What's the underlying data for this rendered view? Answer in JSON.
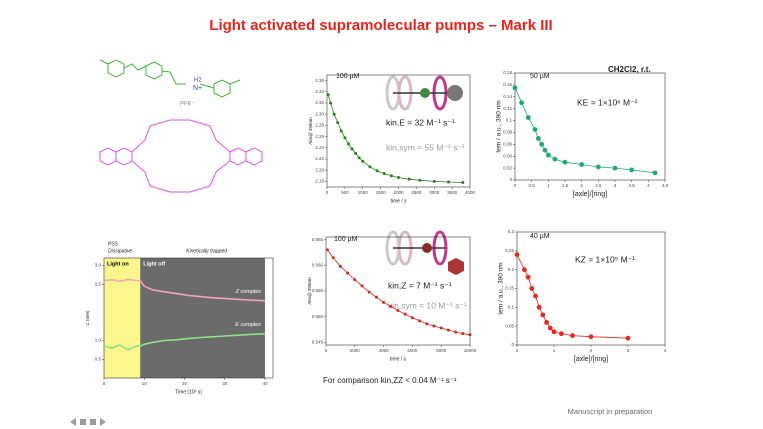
{
  "title": "Light activated supramolecular pumps – Mark III",
  "footer": "Manuscript in preparation",
  "solvent": "CH2Cl2, r.t.",
  "comparison": "For comparison   kin,ZZ < 0.04 M⁻¹ s⁻¹",
  "structure_labels": [
    "H2",
    "N+",
    "PF6⁻"
  ],
  "chart_data": [
    {
      "type": "scatter",
      "x_label": "time / s",
      "y_label": "Abs@ 390nm",
      "annotations": [
        "100 µM",
        "kin,E = 32 M⁻¹ s⁻¹",
        "kin,sym = 55 M⁻¹ s⁻¹"
      ],
      "xlim": [
        0,
        4000
      ],
      "xticks": [
        0,
        500,
        1000,
        1500,
        2000,
        2500,
        3000,
        3500,
        4000
      ],
      "ylim": [
        2.17,
        2.37
      ],
      "yticks": [
        2.18,
        {
          "value": 2.2,
          "label": "2.20"
        },
        2.22,
        2.24,
        2.26,
        2.28,
        {
          "value": 2.3,
          "label": "2.30"
        },
        2.32,
        2.34,
        2.36
      ],
      "series": [
        {
          "color": "#2e7d1e",
          "x": [
            30,
            100,
            200,
            300,
            400,
            500,
            600,
            700,
            800,
            900,
            1000,
            1200,
            1400,
            1600,
            1800,
            2000,
            2300,
            2600,
            3000,
            3400,
            3800
          ],
          "values": [
            2.335,
            2.32,
            2.3,
            2.285,
            2.27,
            2.258,
            2.247,
            2.238,
            2.23,
            2.222,
            2.216,
            2.206,
            2.199,
            2.194,
            2.19,
            2.187,
            2.184,
            2.182,
            2.18,
            2.179,
            2.178
          ]
        }
      ]
    },
    {
      "type": "scatter",
      "x_label": "[axle]/[ring]",
      "y_label": "Iem / a.u., 390 nm",
      "annotations": [
        "50 µM",
        "KE = 1×10⁶ M⁻¹"
      ],
      "xlim": [
        0,
        4.5
      ],
      "xticks": [
        0,
        0.5,
        1,
        1.5,
        2,
        2.5,
        3,
        3.5,
        4,
        4.5
      ],
      "ylim": [
        0,
        0.18
      ],
      "yticks": [
        0,
        0.02,
        0.04,
        0.06,
        0.08,
        0.1,
        0.12,
        0.14,
        0.16,
        0.18
      ],
      "series": [
        {
          "color": "#1faa6e",
          "x": [
            0,
            0.2,
            0.4,
            0.6,
            0.7,
            0.8,
            0.9,
            1,
            1.2,
            1.5,
            2,
            2.5,
            3,
            3.5,
            4.2
          ],
          "values": [
            0.155,
            0.13,
            0.105,
            0.085,
            0.07,
            0.06,
            0.05,
            0.042,
            0.035,
            0.03,
            0.026,
            0.022,
            0.02,
            0.017,
            0.012
          ]
        }
      ]
    },
    {
      "type": "scatter",
      "x_label": "time / s",
      "y_label": "Abs@ 390nm",
      "annotations": [
        "100 µM",
        "kin,Z = 7 M⁻¹ s⁻¹",
        "kin,sym = 10 M⁻¹ s⁻¹"
      ],
      "xlim": [
        0,
        10000
      ],
      "xticks": [
        0,
        2000,
        4000,
        6000,
        8000,
        10000
      ],
      "ylim": [
        0.5445,
        0.5655
      ],
      "yticks": [
        0.545,
        {
          "value": 0.55,
          "label": "0.550"
        },
        0.555,
        {
          "value": 0.56,
          "label": "0.560"
        },
        0.565
      ],
      "series": [
        {
          "color": "#d42a1e",
          "x": [
            100,
            500,
            1000,
            1500,
            2000,
            2500,
            3000,
            3500,
            4000,
            4500,
            5000,
            5500,
            6000,
            6500,
            7000,
            7500,
            8000,
            8500,
            9000,
            9500,
            10000
          ],
          "values": [
            0.563,
            0.5615,
            0.5598,
            0.5585,
            0.5572,
            0.556,
            0.5548,
            0.5538,
            0.5528,
            0.552,
            0.5512,
            0.5505,
            0.5498,
            0.5492,
            0.5486,
            0.5482,
            0.5478,
            0.5474,
            0.547,
            0.5467,
            0.5465
          ]
        }
      ]
    },
    {
      "type": "scatter",
      "x_label": "[axle]/[ring]",
      "y_label": "Iem / a.u., 390 nm",
      "annotations": [
        "40 µM",
        "KZ = 1×10⁵ M⁻¹"
      ],
      "xlim": [
        0,
        4
      ],
      "xticks": [
        0,
        1,
        2,
        3,
        4
      ],
      "ylim": [
        0,
        0.3
      ],
      "yticks": [
        0,
        0.05,
        0.1,
        0.15,
        0.2,
        0.25,
        0.3
      ],
      "series": [
        {
          "color": "#e8261c",
          "x": [
            0,
            0.2,
            0.3,
            0.4,
            0.5,
            0.6,
            0.7,
            0.8,
            0.9,
            1,
            1.2,
            1.5,
            2,
            3
          ],
          "values": [
            0.24,
            0.2,
            0.18,
            0.15,
            0.13,
            0.1,
            0.08,
            0.06,
            0.045,
            0.035,
            0.03,
            0.025,
            0.022,
            0.018
          ]
        }
      ]
    },
    {
      "type": "line",
      "x_label": "Time (10³ s)",
      "y_label": "C (mM)",
      "phases": [
        "PSS",
        "Dissipative",
        "Kinetically trapped"
      ],
      "regions": [
        {
          "label": "Light on",
          "from": 0,
          "to": 9,
          "color": "#fbf78a"
        },
        {
          "label": "Light off",
          "from": 9,
          "to": 40,
          "color": "#6b6b6b"
        }
      ],
      "xlim": [
        0,
        42
      ],
      "xticks": [
        0,
        10,
        20,
        30,
        40
      ],
      "ylim": [
        0,
        3.2
      ],
      "yticks": [
        0.5,
        {
          "value": 1,
          "label": "1.0"
        },
        2.5,
        {
          "value": 3,
          "label": "3.0"
        }
      ],
      "x": [
        0,
        2,
        4,
        6,
        8,
        9,
        10,
        12,
        15,
        18,
        21,
        24,
        27,
        30,
        33,
        36,
        40
      ],
      "series": [
        {
          "name": "Z complex",
          "color": "#f0a7b8",
          "values": [
            2.6,
            2.62,
            2.58,
            2.63,
            2.6,
            2.6,
            2.45,
            2.35,
            2.3,
            2.25,
            2.2,
            2.17,
            2.14,
            2.12,
            2.1,
            2.08,
            2.06
          ]
        },
        {
          "name": "E complex",
          "color": "#8fe08a",
          "values": [
            0.85,
            0.8,
            0.88,
            0.75,
            0.85,
            0.85,
            0.9,
            0.95,
            1,
            1.02,
            1.05,
            1.08,
            1.1,
            1.12,
            1.14,
            1.16,
            1.18
          ]
        }
      ]
    }
  ]
}
